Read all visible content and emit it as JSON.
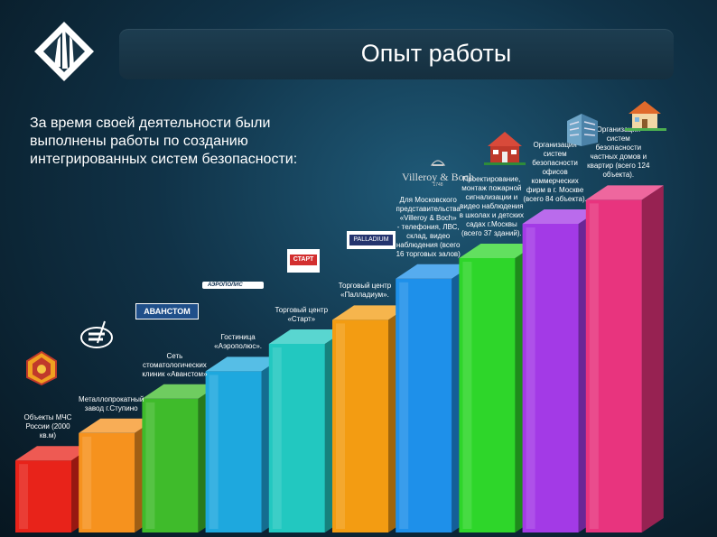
{
  "header": {
    "title": "Опыт работы"
  },
  "intro": "За время своей деятельности были выполнены работы по созданию интегрированных систем безопасности:",
  "logos": {
    "avanstom": "АВАНСТОМ",
    "aeropolis": "АЭРОПОЛИС",
    "start": "СТАРТ",
    "palladium": "PALLADIUM",
    "villeroy": "Villeroy & Boch",
    "villeroy_year": "1748"
  },
  "bars": [
    {
      "caption": "Объекты МЧС\nРоссии (2000\nкв.м)",
      "color": "#e8231a",
      "level": 0.21
    },
    {
      "caption": "Металлопрокатный\nзавод г.Ступино",
      "color": "#f6921e",
      "level": 0.29
    },
    {
      "caption": "Сеть\nстоматологических\nклиник «Аванстом»",
      "color": "#3fbb2b",
      "level": 0.39
    },
    {
      "caption": "Гостиница\n«Аэрополюс».",
      "color": "#1ea8de",
      "level": 0.47
    },
    {
      "caption": "Торговый центр\n«Старт»",
      "color": "#22c8c0",
      "level": 0.55
    },
    {
      "caption": "Торговый центр\n«Палладиум».",
      "color": "#f39c12",
      "level": 0.62
    },
    {
      "caption": "Для Московского\nпредставительства\n«Villeroy & Boch»\n- телефония, ЛВС,\nсклад, видео\nнаблюдения (всего\n16 торговых залов)",
      "color": "#1e90ea",
      "level": 0.74
    },
    {
      "caption": "Проектирование,\nмонтаж пожарной\nсигнализации и\nвидео наблюдения\nв школах и детских\nсадах г.Москвы\n(всего 37 зданий).",
      "color": "#2ed62a",
      "level": 0.8
    },
    {
      "caption": "Организация\nсистем\nбезопасности\nофисов\nкоммерческих\nфирм в г. Москве\n(всего 84 объекта).",
      "color": "#a33ae6",
      "level": 0.9
    },
    {
      "caption": "Организация\nсистем\nбезопасности\nчастных домов и\nквартир (всего 124\nобъекта).",
      "color": "#e8347e",
      "level": 0.97
    }
  ]
}
